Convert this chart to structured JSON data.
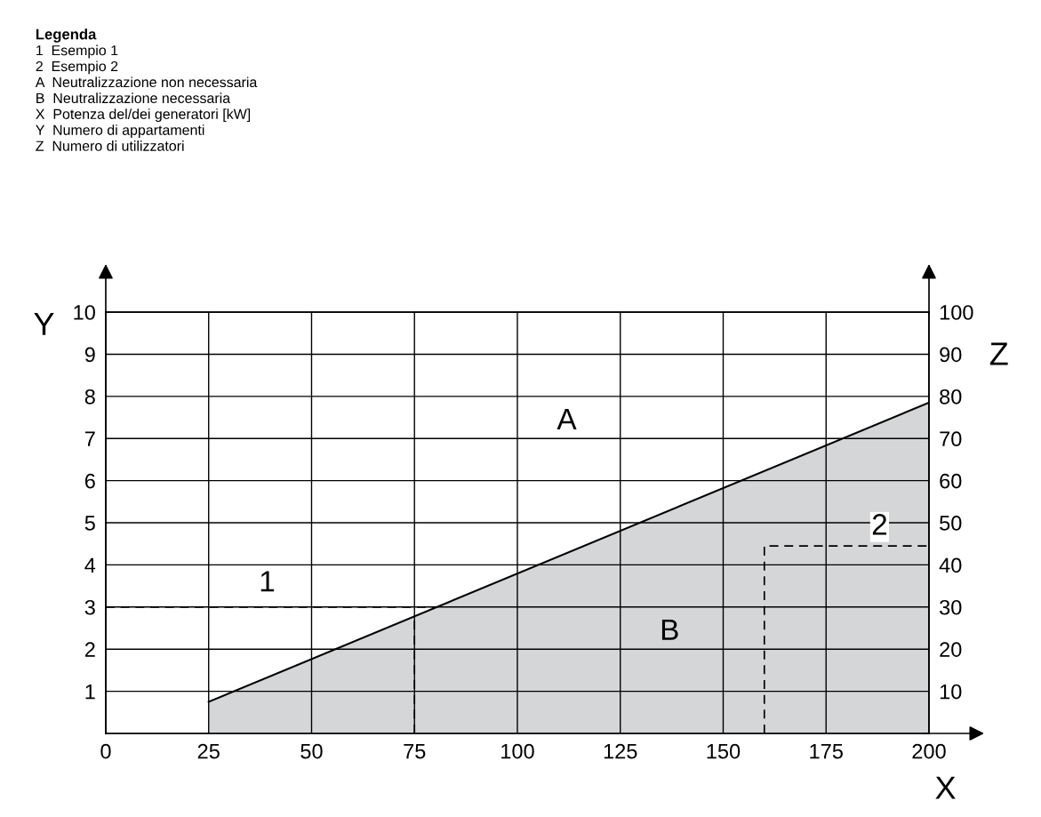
{
  "chart_data": {
    "type": "area",
    "title": "Legenda",
    "annotations": [
      "1  Esempio 1",
      "2  Esempio 2",
      "A  Neutralizzazione non necessaria",
      "B  Neutralizzazione necessaria",
      "X  Potenza del/dei generatori [kW]",
      "Y  Numero di appartamenti",
      "Z  Numero di utilizzatori",
      "1",
      "2",
      "A",
      "B"
    ],
    "xlabel": "X",
    "ylabel": "Y",
    "y2label": "Z",
    "series": [
      {
        "color": "#d4d6d8",
        "x": [
          25,
          200
        ],
        "values": [
          0.75,
          7.85
        ]
      },
      {
        "type": "line",
        "color": "#000000",
        "line_style": "dashed",
        "x": [
          0,
          80
        ],
        "values": [
          3,
          3
        ]
      },
      {
        "type": "line",
        "color": "#000000",
        "line_style": "dashed",
        "x": [
          75,
          75
        ],
        "values": [
          0,
          2.8
        ]
      },
      {
        "type": "line",
        "color": "#000000",
        "line_style": "dashed",
        "x": [
          160,
          160,
          200
        ],
        "values": [
          0,
          4.45,
          4.45
        ]
      }
    ],
    "xlim": [
      0,
      200
    ],
    "xticks": [
      0,
      25,
      50,
      75,
      100,
      125,
      150,
      175,
      200
    ],
    "ylim": [
      0,
      10
    ],
    "yticks": [
      1,
      2,
      3,
      4,
      5,
      6,
      7,
      8,
      9,
      10
    ],
    "y2lim": [
      0,
      100
    ],
    "y2ticks": [
      10,
      20,
      30,
      40,
      50,
      60,
      70,
      80,
      90,
      100
    ],
    "grid": true,
    "legend": false
  }
}
